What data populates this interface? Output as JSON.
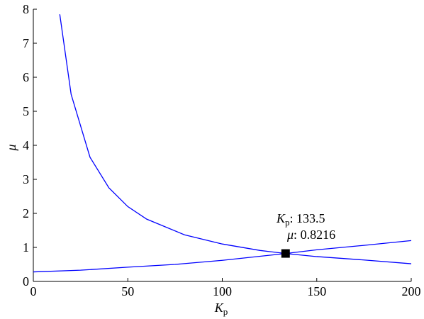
{
  "chart_data": {
    "type": "line",
    "xlabel": {
      "base": "K",
      "sub": "p"
    },
    "ylabel": "μ",
    "xlim": [
      0,
      200
    ],
    "xticks": [
      0,
      50,
      100,
      150,
      200
    ],
    "ylim": [
      0,
      8
    ],
    "yticks": [
      0,
      1,
      2,
      3,
      4,
      5,
      6,
      7,
      8
    ],
    "series": [
      {
        "color": "#0000ff",
        "x": [
          14,
          20,
          30,
          40,
          50,
          60,
          80,
          100,
          120,
          133.5,
          150,
          175,
          200
        ],
        "values": [
          7.85,
          5.5,
          3.65,
          2.75,
          2.2,
          1.83,
          1.37,
          1.1,
          0.91,
          0.82,
          0.73,
          0.63,
          0.52
        ]
      },
      {
        "color": "#0000ff",
        "x": [
          0,
          25,
          50,
          75,
          100,
          133.5,
          150,
          175,
          200
        ],
        "values": [
          0.28,
          0.33,
          0.42,
          0.5,
          0.62,
          0.82,
          0.93,
          1.06,
          1.2
        ]
      }
    ],
    "datatip": {
      "x_label": {
        "base": "K",
        "sub": "p"
      },
      "separator": ": ",
      "x": 133.5,
      "y_label": "μ",
      "y": 0.8216
    }
  }
}
